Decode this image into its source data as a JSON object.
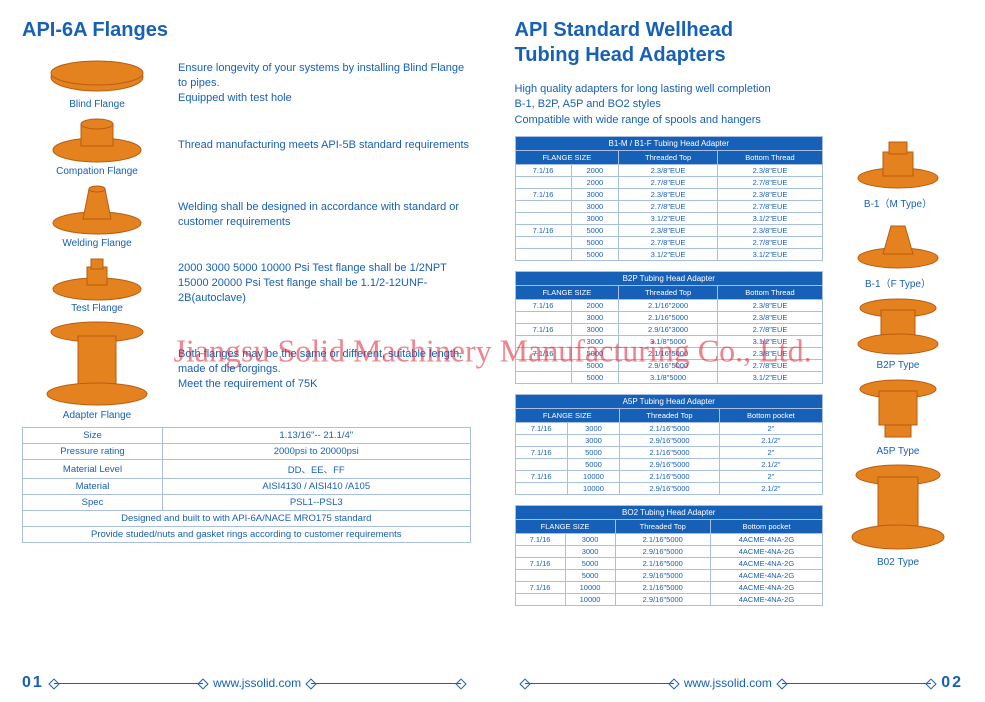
{
  "colors": {
    "brand": "#1760b8",
    "flange": "#e58220",
    "flangeDark": "#b85c10",
    "border": "#a9bfe0",
    "watermark": "#d23"
  },
  "watermark": "Jiangsu Solid Machinery Manufacturing Co., Ltd.",
  "left": {
    "title": "API-6A Flanges",
    "flanges": [
      {
        "label": "Blind Flange",
        "desc": "Ensure longevity of your systems by installing Blind Flange to pipes.\nEquipped with test hole"
      },
      {
        "label": "Compation Flange",
        "desc": "Thread manufacturing meets API-5B standard requirements"
      },
      {
        "label": "Welding Flange",
        "desc": "Welding  shall be designed in accordance with standard or customer requirements"
      },
      {
        "label": "Test Flange",
        "desc": "2000 3000 5000 10000 Psi Test flange shall be 1/2NPT\n15000 20000 Psi Test flange shall be 1.1/2-12UNF-2B(autoclave)"
      },
      {
        "label": "Adapter Flange",
        "desc": "Both flanges may be the same or different, suitable length, made of die forgings.\nMeet the requirement of 75K"
      }
    ],
    "spec": {
      "rows": [
        [
          "Size",
          "1.13/16\"-- 21.1/4\""
        ],
        [
          "Pressure rating",
          "2000psi to 20000psi"
        ],
        [
          "Material Level",
          "DD、EE、FF"
        ],
        [
          "Material",
          "AISI4130 / AISI410 /A105"
        ],
        [
          "Spec",
          "PSL1--PSL3"
        ]
      ],
      "notes": [
        "Designed and built to with API-6A/NACE MRO175 standard",
        "Provide studed/nuts and gasket rings according to customer requirements"
      ]
    },
    "footer": {
      "page": "01",
      "url": "www.jssolid.com"
    }
  },
  "right": {
    "title": "API Standard Wellhead\nTubing Head Adapters",
    "intro": "High quality adapters for long lasting well completion\nB-1, B2P, A5P and BO2 styles\nCompatible with wide range of spools and hangers",
    "figures": [
      {
        "cap": "B-1（M Type）"
      },
      {
        "cap": "B-1（F Type）"
      },
      {
        "cap": "B2P  Type"
      },
      {
        "cap": "A5P  Type"
      },
      {
        "cap": "B02  Type"
      }
    ],
    "tables": [
      {
        "title": "B1-M / B1-F  Tubing  Head  Adapter",
        "headers": [
          "FLANGE SIZE",
          "",
          "Threaded Top",
          "Bottom Thread"
        ],
        "rows": [
          [
            "7.1/16",
            "2000",
            "2.3/8\"EUE",
            "2.3/8\"EUE"
          ],
          [
            "",
            "2000",
            "2.7/8\"EUE",
            "2.7/8\"EUE"
          ],
          [
            "7.1/16",
            "3000",
            "2.3/8\"EUE",
            "2.3/8\"EUE"
          ],
          [
            "",
            "3000",
            "2.7/8\"EUE",
            "2.7/8\"EUE"
          ],
          [
            "",
            "3000",
            "3.1/2\"EUE",
            "3.1/2\"EUE"
          ],
          [
            "7.1/16",
            "5000",
            "2.3/8\"EUE",
            "2.3/8\"EUE"
          ],
          [
            "",
            "5000",
            "2.7/8\"EUE",
            "2.7/8\"EUE"
          ],
          [
            "",
            "5000",
            "3.1/2\"EUE",
            "3.1/2\"EUE"
          ]
        ]
      },
      {
        "title": "B2P Tubing Head  Adapter",
        "headers": [
          "FLANGE SIZE",
          "",
          "Threaded Top",
          "Bottom Thread"
        ],
        "rows": [
          [
            "7.1/16",
            "2000",
            "2.1/16\"2000",
            "2.3/8\"EUE"
          ],
          [
            "",
            "3000",
            "2.1/16\"5000",
            "2.3/8\"EUE"
          ],
          [
            "7.1/16",
            "3000",
            "2.9/16\"3000",
            "2.7/8\"EUE"
          ],
          [
            "",
            "3000",
            "3.1/8\"5000",
            "3.1/2\"EUE"
          ],
          [
            "7.1/16",
            "5000",
            "2.1/16\"5000",
            "2.3/8\"EUE"
          ],
          [
            "",
            "5000",
            "2.9/16\"5000",
            "2.7/8\"EUE"
          ],
          [
            "",
            "5000",
            "3.1/8\"5000",
            "3.1/2\"EUE"
          ]
        ]
      },
      {
        "title": "A5P Tubing Head Adapter",
        "headers": [
          "FLANGE SIZE",
          "",
          "Threaded Top",
          "Bottom pocket"
        ],
        "rows": [
          [
            "7.1/16",
            "3000",
            "2.1/16\"5000",
            "2\""
          ],
          [
            "",
            "3000",
            "2.9/16\"5000",
            "2.1/2\""
          ],
          [
            "7.1/16",
            "5000",
            "2.1/16\"5000",
            "2\""
          ],
          [
            "",
            "5000",
            "2.9/16\"5000",
            "2.1/2\""
          ],
          [
            "7.1/16",
            "10000",
            "2.1/16\"5000",
            "2\""
          ],
          [
            "",
            "10000",
            "2.9/16\"5000",
            "2.1/2\""
          ]
        ]
      },
      {
        "title": "BO2 Tubing Head Adapter",
        "headers": [
          "FLANGE SIZE",
          "",
          "Threaded Top",
          "Bottom pocket"
        ],
        "rows": [
          [
            "7.1/16",
            "3000",
            "2.1/16\"5000",
            "4ACME-4NA-2G"
          ],
          [
            "",
            "3000",
            "2.9/16\"5000",
            "4ACME-4NA-2G"
          ],
          [
            "7.1/16",
            "5000",
            "2.1/16\"5000",
            "4ACME-4NA-2G"
          ],
          [
            "",
            "5000",
            "2.9/16\"5000",
            "4ACME-4NA-2G"
          ],
          [
            "7.1/16",
            "10000",
            "2.1/16\"5000",
            "4ACME-4NA-2G"
          ],
          [
            "",
            "10000",
            "2.9/16\"5000",
            "4ACME-4NA-2G"
          ]
        ]
      }
    ],
    "footer": {
      "page": "02",
      "url": "www.jssolid.com"
    }
  }
}
